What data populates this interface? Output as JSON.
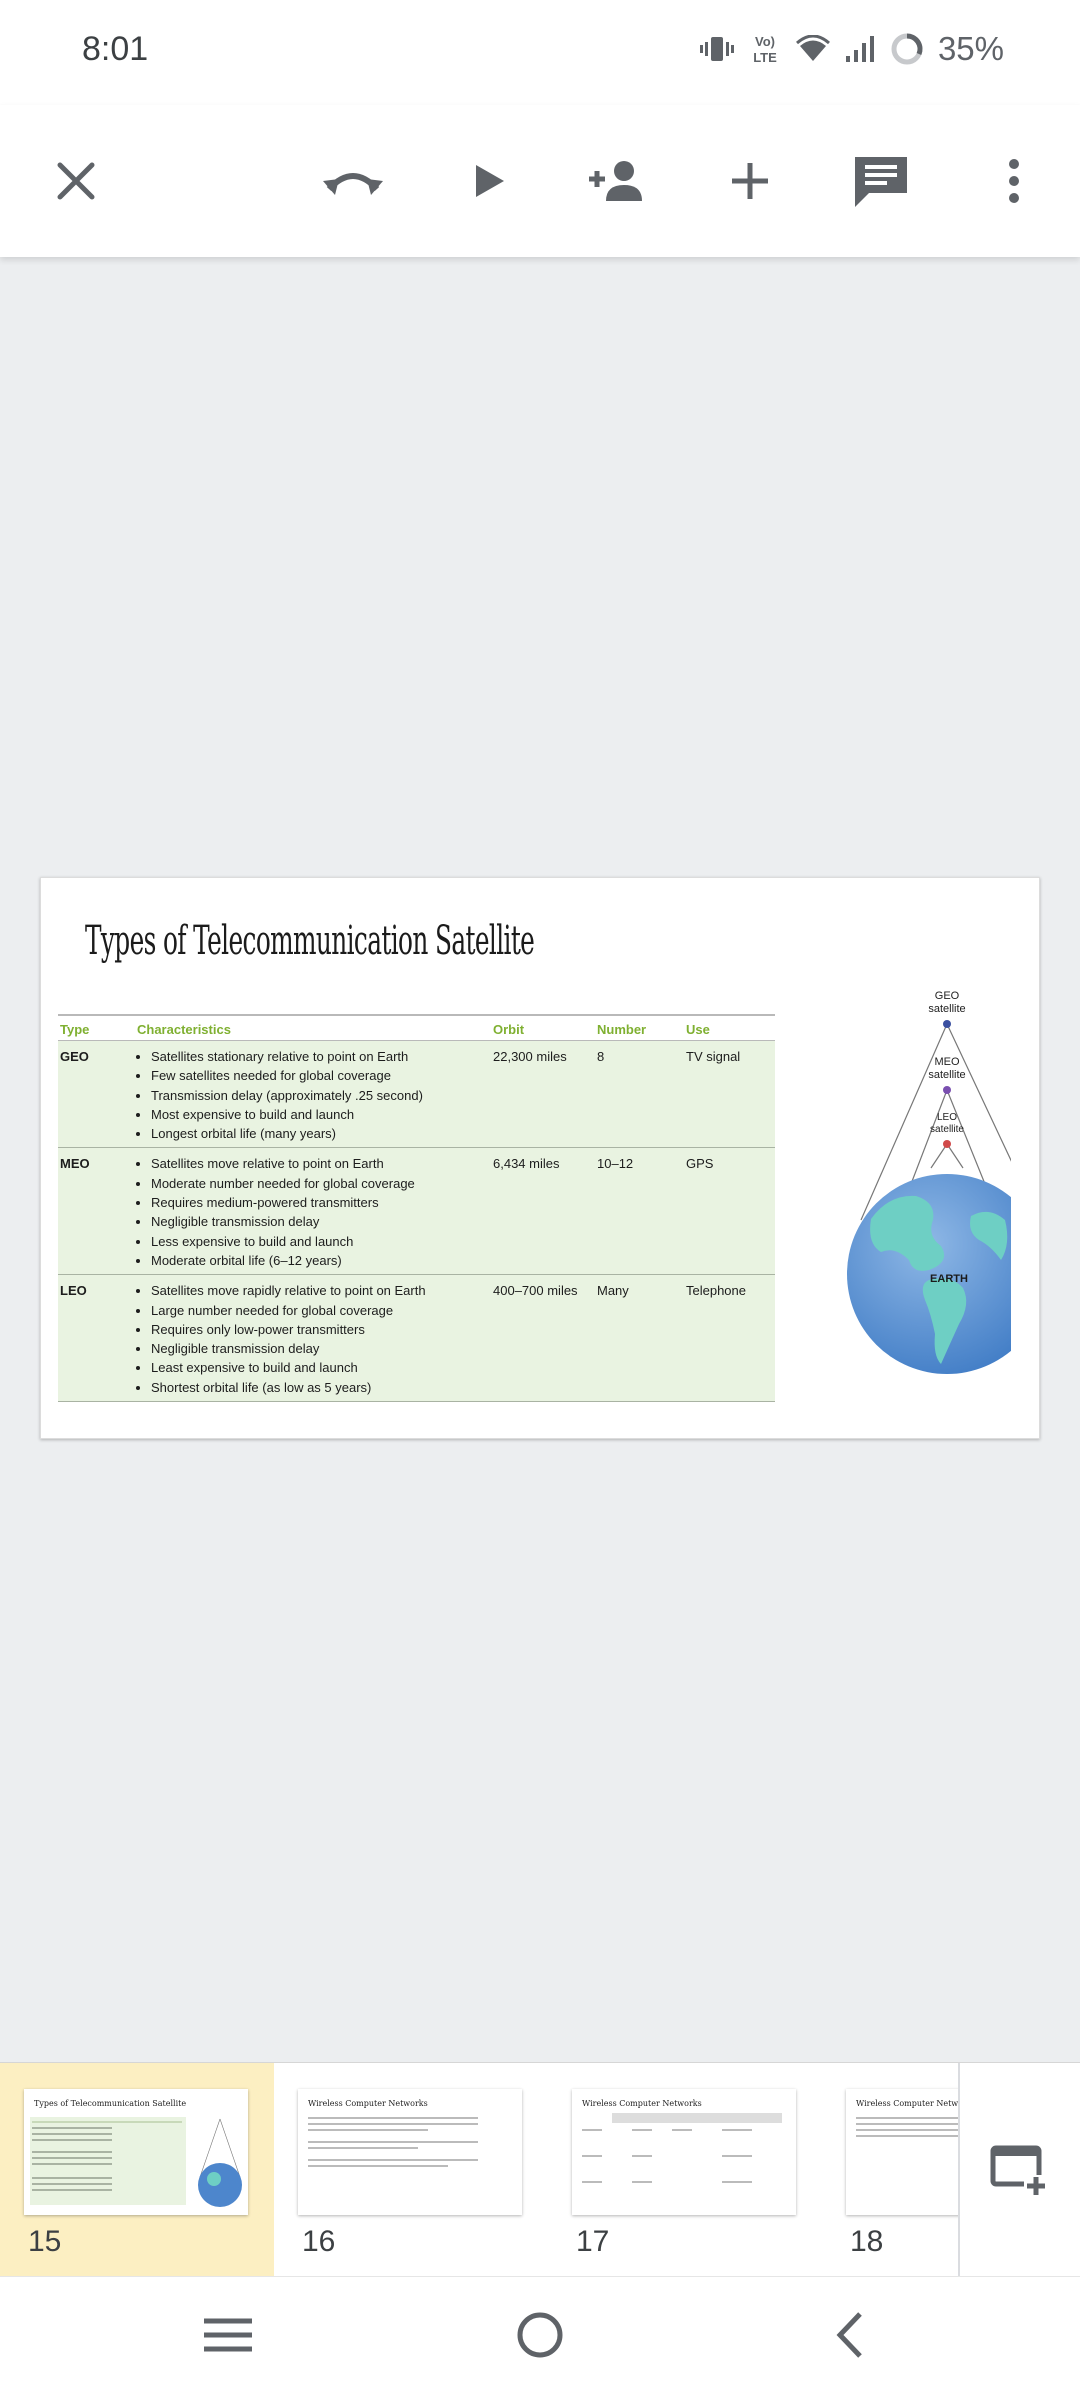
{
  "status_bar": {
    "time": "8:01",
    "battery": "35%",
    "icons": [
      "vibrate-icon",
      "volte-icon",
      "wifi-icon",
      "signal-icon",
      "battery-ring-icon"
    ]
  },
  "toolbar": {
    "buttons": [
      "close-icon",
      "undo-redo-icon",
      "play-icon",
      "add-person-icon",
      "add-icon",
      "comment-icon",
      "more-vert-icon"
    ]
  },
  "slide": {
    "title": "Types of Telecommunication Satellite",
    "table": {
      "headers": [
        "Type",
        "Characteristics",
        "Orbit",
        "Number",
        "Use"
      ],
      "rows": [
        {
          "type": "GEO",
          "characteristics": [
            "Satellites stationary relative to point on Earth",
            "Few satellites needed for global coverage",
            "Transmission delay (approximately .25 second)",
            "Most expensive to build and launch",
            "Longest orbital life (many years)"
          ],
          "orbit": "22,300 miles",
          "number": "8",
          "use": "TV signal"
        },
        {
          "type": "MEO",
          "characteristics": [
            "Satellites move relative to point on Earth",
            "Moderate number needed for global coverage",
            "Requires medium-powered transmitters",
            "Negligible transmission delay",
            "Less expensive to build and launch",
            "Moderate orbital life (6–12 years)"
          ],
          "orbit": "6,434 miles",
          "number": "10–12",
          "use": "GPS"
        },
        {
          "type": "LEO",
          "characteristics": [
            "Satellites move rapidly relative to point on Earth",
            "Large number needed for global coverage",
            "Requires only low-power transmitters",
            "Negligible transmission delay",
            "Least expensive to build and launch",
            "Shortest orbital life (as low as 5 years)"
          ],
          "orbit": "400–700 miles",
          "number": "Many",
          "use": "Telephone"
        }
      ]
    },
    "figure": {
      "geo_label_1": "GEO",
      "geo_label_2": "satellite",
      "meo_label_1": "MEO",
      "meo_label_2": "satellite",
      "leo_label_1": "LEO",
      "leo_label_2": "satellite",
      "earth_label": "EARTH"
    }
  },
  "filmstrip": {
    "active_index": 0,
    "thumbnails": [
      {
        "number": "15",
        "title": "Types of Telecommunication Satellite"
      },
      {
        "number": "16",
        "title": "Wireless Computer Networks"
      },
      {
        "number": "17",
        "title": "Wireless Computer Networks"
      },
      {
        "number": "18",
        "title": "Wireless Computer Networks"
      }
    ]
  },
  "colors": {
    "accent_green": "#7fb031",
    "table_fill": "#e9f3e1",
    "active_thumb": "#fcefc2",
    "icon_gray": "#5f6368"
  }
}
